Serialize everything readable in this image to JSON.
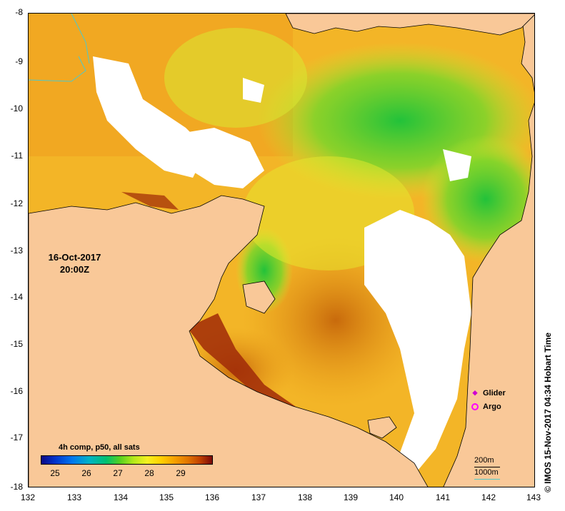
{
  "map": {
    "date": "16-Oct-2017",
    "time": "20:00Z",
    "lat_labels": [
      "-8",
      "-9",
      "-10",
      "-11",
      "-12",
      "-13",
      "-14",
      "-15",
      "-16",
      "-17",
      "-18"
    ],
    "lon_labels": [
      "132",
      "133",
      "134",
      "135",
      "136",
      "137",
      "138",
      "139",
      "140",
      "141",
      "142",
      "143"
    ],
    "lat_range": [
      -18,
      -8
    ],
    "lon_range": [
      132,
      143
    ],
    "land_color": "#f9c898",
    "cloud_color": "#ffffff"
  },
  "colorbar": {
    "title": "4h comp, p50, all sats",
    "ticks": [
      "25",
      "26",
      "27",
      "28",
      "29"
    ],
    "range": [
      24.6,
      30.1
    ]
  },
  "markers": {
    "glider": "Glider",
    "argo": "Argo"
  },
  "depth_legend": {
    "line1": "200m",
    "line2": "1000m"
  },
  "credit": "© IMOS 15-Nov-2017 04:34 Hobart Time"
}
